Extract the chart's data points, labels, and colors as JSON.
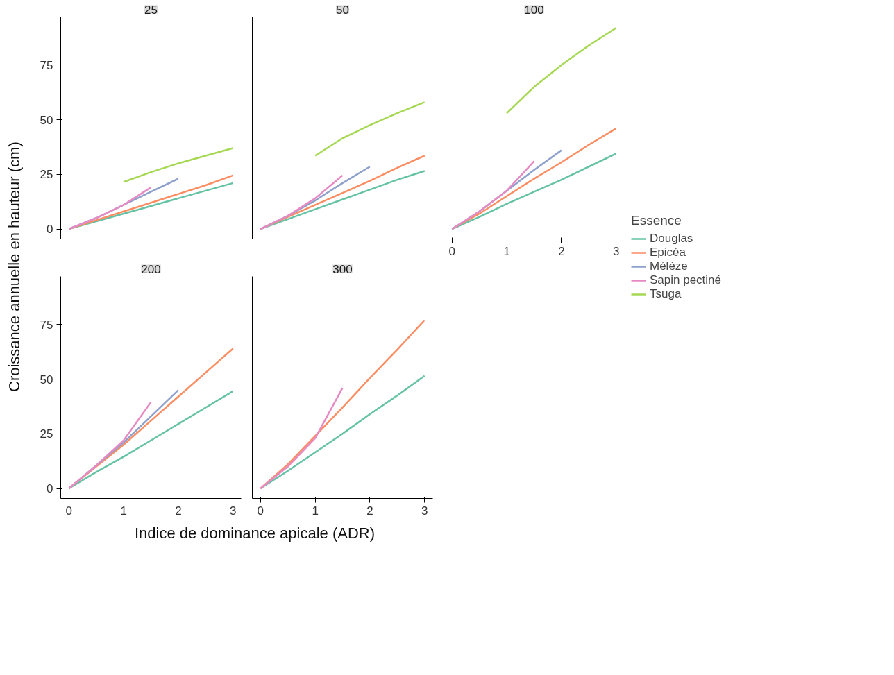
{
  "chart_data": [
    {
      "type": "line",
      "title": "25",
      "ylabel": "Croissance annuelle en hauteur (cm)",
      "xlim": [
        -0.15,
        3.15
      ],
      "ylim": [
        -4.6,
        97
      ],
      "xticks": [
        0,
        1,
        2,
        3
      ],
      "yticks": [
        0,
        25,
        50,
        75
      ],
      "tick_labels": "y",
      "series": [
        {
          "color": "#66c2a5",
          "x": [
            0,
            0.5,
            1,
            1.5,
            2,
            2.5,
            3
          ],
          "values": [
            0,
            3.5,
            7,
            10.5,
            14,
            17.5,
            21
          ]
        },
        {
          "color": "#fc8d62",
          "x": [
            0,
            0.5,
            1,
            1.5,
            2,
            2.5,
            3
          ],
          "values": [
            0,
            4,
            8,
            12,
            16,
            20,
            24.5
          ]
        },
        {
          "color": "#8da0cb",
          "x": [
            0,
            0.5,
            1,
            1.5,
            2
          ],
          "values": [
            0,
            5,
            11,
            17,
            23
          ]
        },
        {
          "color": "#e78ac3",
          "x": [
            0,
            0.5,
            1,
            1.5
          ],
          "values": [
            0,
            5,
            11,
            19
          ]
        },
        {
          "color": "#a6d854",
          "x": [
            1,
            1.5,
            2,
            2.5,
            3
          ],
          "values": [
            21.5,
            26,
            30,
            33.5,
            37
          ]
        }
      ]
    },
    {
      "type": "line",
      "title": "50",
      "xlim": [
        -0.15,
        3.15
      ],
      "ylim": [
        -4.6,
        97
      ],
      "xticks": [
        0,
        1,
        2,
        3
      ],
      "yticks": [
        0,
        25,
        50,
        75
      ],
      "tick_labels": false,
      "series": [
        {
          "color": "#66c2a5",
          "x": [
            0,
            0.5,
            1,
            1.5,
            2,
            2.5,
            3
          ],
          "values": [
            0,
            4.5,
            9,
            13.5,
            18,
            22.5,
            26.5
          ]
        },
        {
          "color": "#fc8d62",
          "x": [
            0,
            0.5,
            1,
            1.5,
            2,
            2.5,
            3
          ],
          "values": [
            0,
            5.5,
            11,
            16.5,
            22,
            28,
            33.5
          ]
        },
        {
          "color": "#8da0cb",
          "x": [
            0,
            0.5,
            1,
            1.5,
            2
          ],
          "values": [
            0,
            6,
            13,
            21,
            28.5
          ]
        },
        {
          "color": "#e78ac3",
          "x": [
            0,
            0.5,
            1,
            1.5
          ],
          "values": [
            0,
            6,
            14,
            24.5
          ]
        },
        {
          "color": "#a6d854",
          "x": [
            1,
            1.5,
            2,
            2.5,
            3
          ],
          "values": [
            33.5,
            41.5,
            47.5,
            53,
            58
          ]
        }
      ]
    },
    {
      "type": "line",
      "title": "100",
      "legend": "right",
      "legend_title": "Essence",
      "xlim": [
        -0.15,
        3.15
      ],
      "ylim": [
        -4.6,
        97
      ],
      "xticks": [
        0,
        1,
        2,
        3
      ],
      "yticks": [
        0,
        25,
        50,
        75
      ],
      "tick_labels": "x",
      "series": [
        {
          "name": "Douglas",
          "color": "#66c2a5",
          "x": [
            0,
            0.5,
            1,
            1.5,
            2,
            2.5,
            3
          ],
          "values": [
            0,
            5.5,
            11.5,
            17,
            22.5,
            28.5,
            34.5
          ]
        },
        {
          "name": "Epicéa",
          "color": "#fc8d62",
          "x": [
            0,
            0.5,
            1,
            1.5,
            2,
            2.5,
            3
          ],
          "values": [
            0,
            7,
            15,
            23,
            30.5,
            38.5,
            46
          ]
        },
        {
          "name": "Mélèze",
          "color": "#8da0cb",
          "x": [
            0,
            0.5,
            1,
            1.5,
            2
          ],
          "values": [
            0,
            8,
            17.5,
            27,
            36
          ]
        },
        {
          "name": "Sapin pectiné",
          "color": "#e78ac3",
          "x": [
            0,
            0.5,
            1,
            1.5
          ],
          "values": [
            0,
            8,
            17.5,
            31
          ]
        },
        {
          "name": "Tsuga",
          "color": "#a6d854",
          "x": [
            1,
            1.5,
            2,
            2.5,
            3
          ],
          "values": [
            53,
            65,
            75,
            84,
            92
          ]
        }
      ]
    },
    {
      "type": "line",
      "title": "200",
      "xlim": [
        -0.15,
        3.15
      ],
      "ylim": [
        -4.6,
        97
      ],
      "xticks": [
        0,
        1,
        2,
        3
      ],
      "yticks": [
        0,
        25,
        50,
        75
      ],
      "series": [
        {
          "color": "#66c2a5",
          "x": [
            0,
            0.5,
            1,
            1.5,
            2,
            2.5,
            3
          ],
          "values": [
            0,
            7.5,
            14.5,
            22,
            29.5,
            37,
            44.5
          ]
        },
        {
          "color": "#fc8d62",
          "x": [
            0,
            0.5,
            1,
            1.5,
            2,
            2.5,
            3
          ],
          "values": [
            0,
            10,
            20,
            31,
            42,
            53,
            64
          ]
        },
        {
          "color": "#8da0cb",
          "x": [
            0,
            0.5,
            1,
            1.5,
            2
          ],
          "values": [
            0,
            10.5,
            21,
            33,
            45
          ]
        },
        {
          "color": "#e78ac3",
          "x": [
            0,
            0.5,
            1,
            1.5
          ],
          "values": [
            0,
            10.5,
            22,
            39.5
          ]
        }
      ]
    },
    {
      "type": "line",
      "title": "300",
      "xlabel": "Indice de dominance apicale (ADR)",
      "xlim": [
        -0.15,
        3.15
      ],
      "ylim": [
        -4.6,
        97
      ],
      "xticks": [
        0,
        1,
        2,
        3
      ],
      "yticks": [
        0,
        25,
        50,
        75
      ],
      "tick_labels": "x",
      "series": [
        {
          "color": "#66c2a5",
          "x": [
            0,
            0.5,
            1,
            1.5,
            2,
            2.5,
            3
          ],
          "values": [
            0,
            8,
            16.5,
            25,
            34,
            42.5,
            51.5
          ]
        },
        {
          "color": "#fc8d62",
          "x": [
            0,
            0.5,
            1,
            1.5,
            2,
            2.5,
            3
          ],
          "values": [
            0,
            11,
            24,
            37,
            50.5,
            63.5,
            77
          ]
        },
        {
          "color": "#e78ac3",
          "x": [
            0,
            0.5,
            1,
            1.5
          ],
          "values": [
            0,
            10,
            23,
            46
          ]
        }
      ]
    }
  ]
}
